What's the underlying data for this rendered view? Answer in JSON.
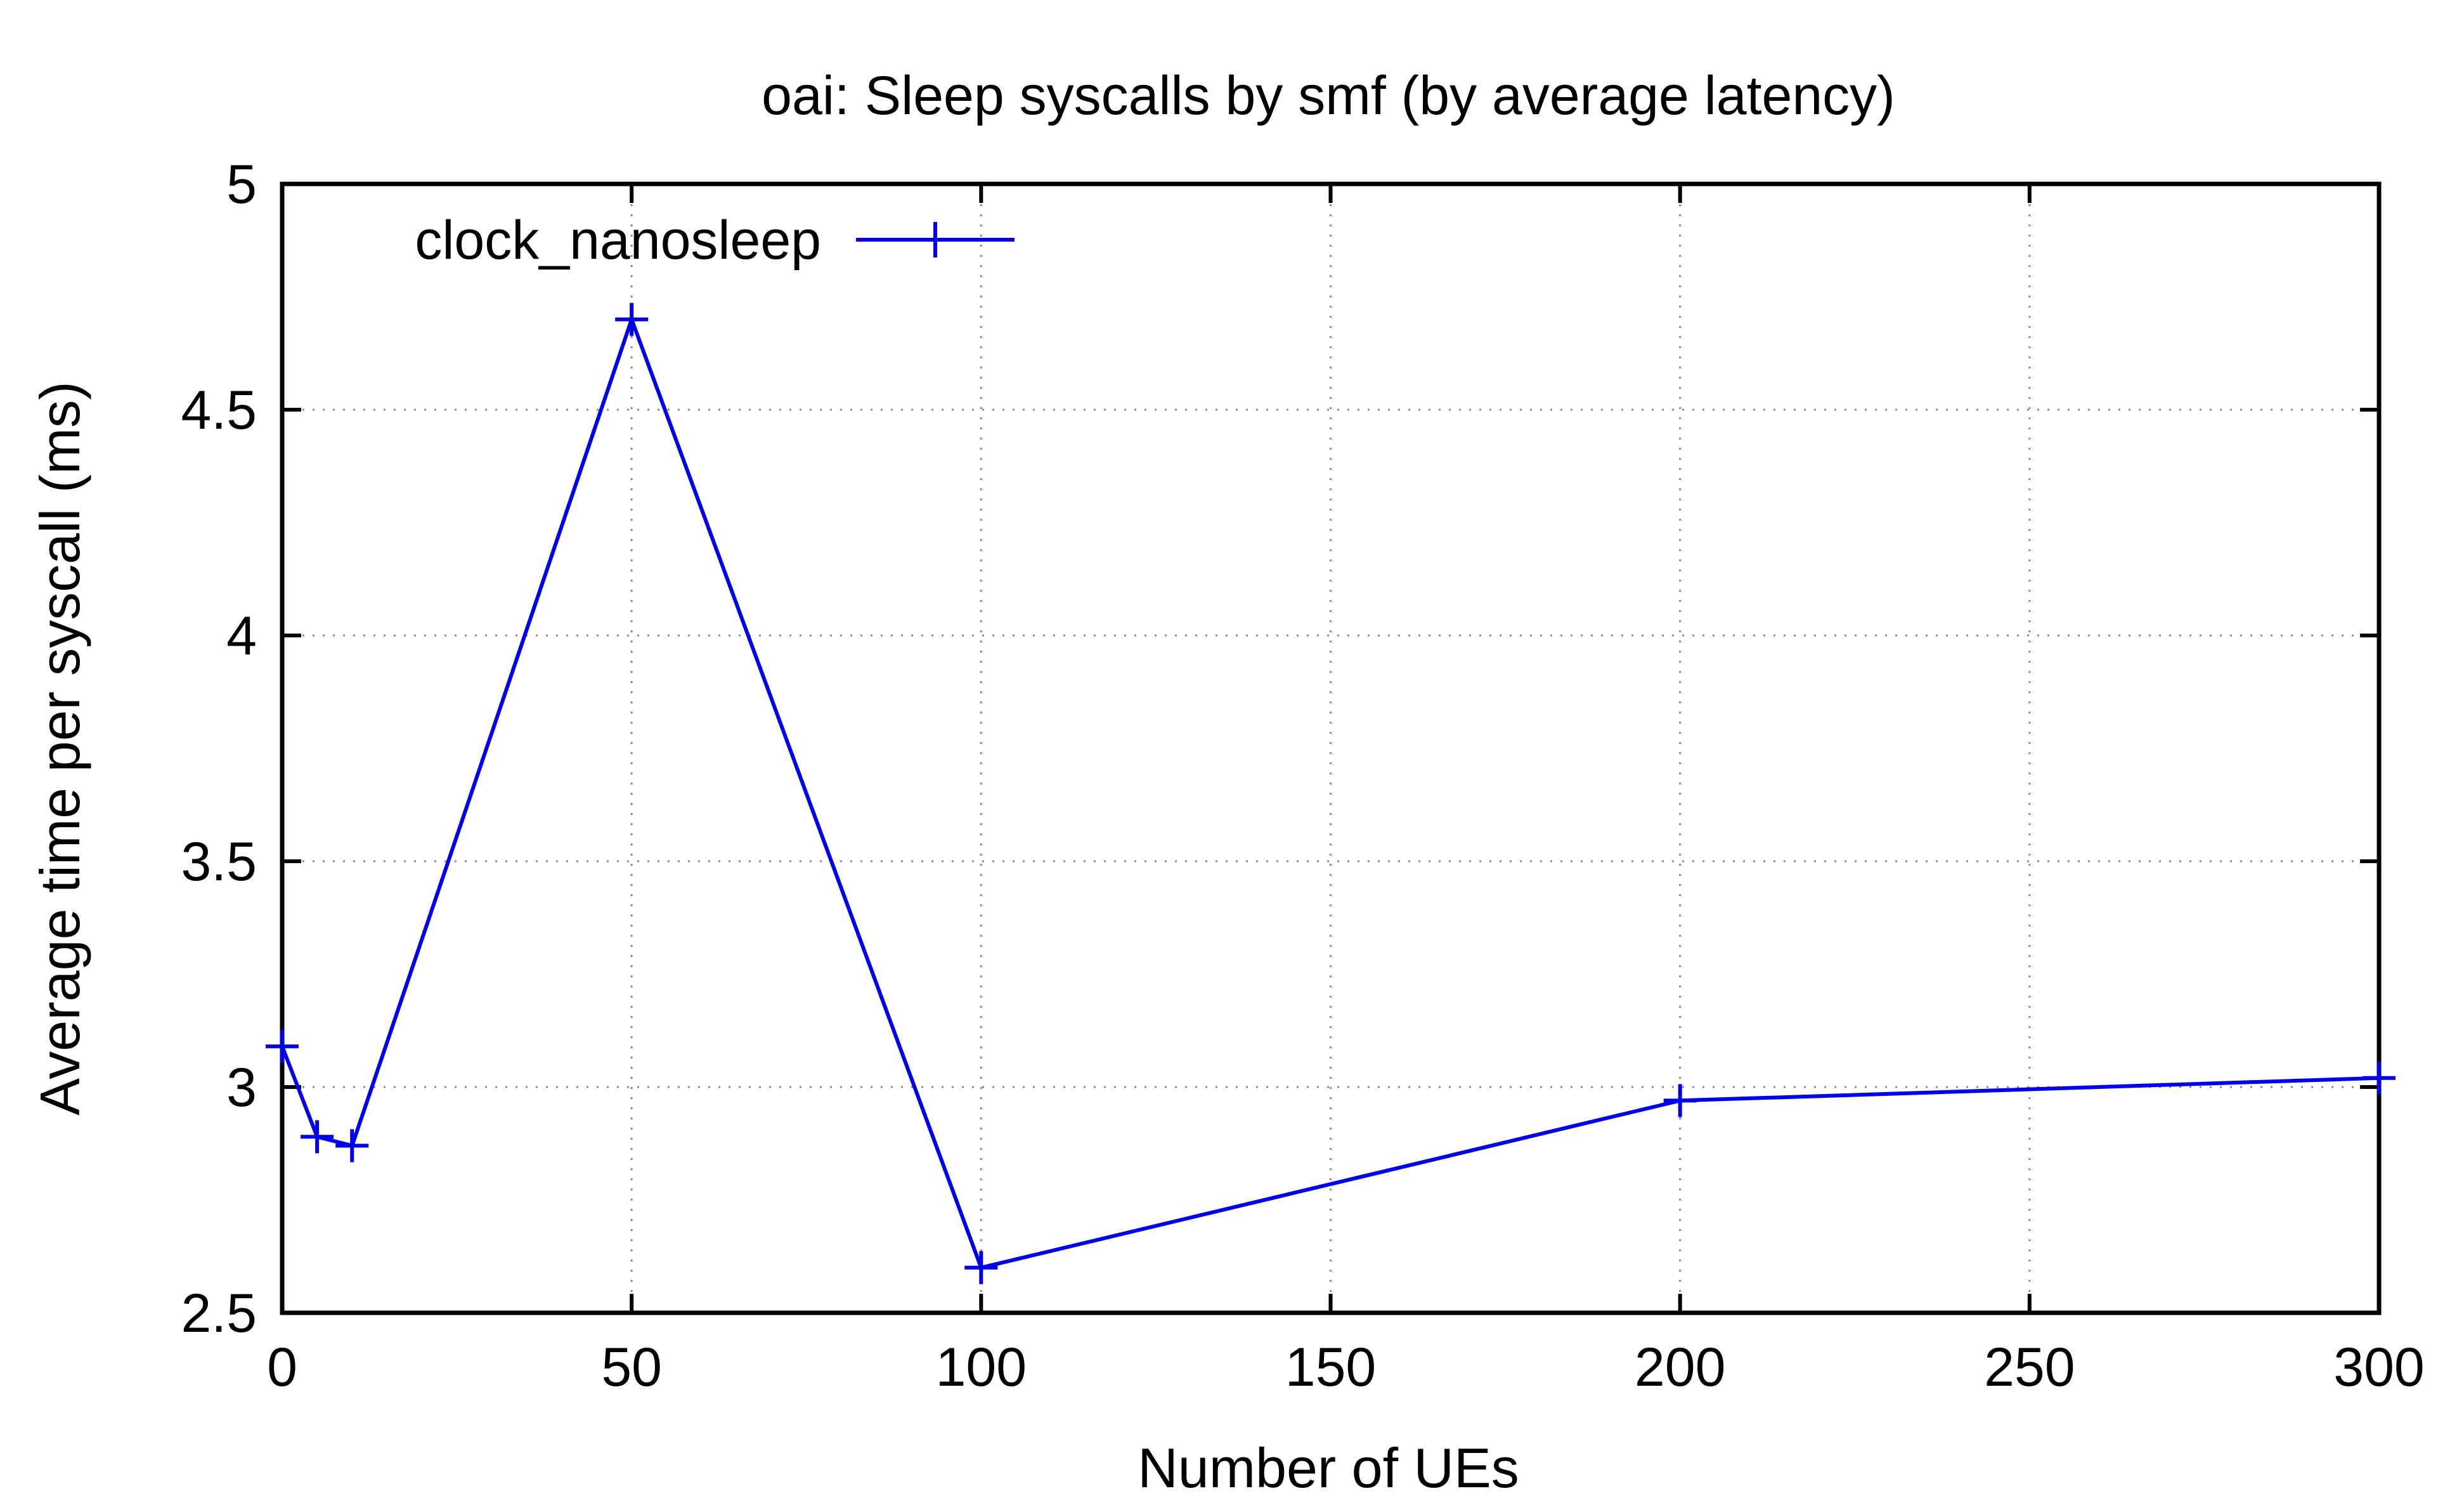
{
  "chart_data": {
    "type": "line",
    "title": "oai: Sleep syscalls by smf (by average latency)",
    "xlabel": "Number of UEs",
    "ylabel": "Average time per syscall (ms)",
    "xlim": [
      0,
      300
    ],
    "ylim": [
      2.5,
      5
    ],
    "x_ticks": [
      0,
      50,
      100,
      150,
      200,
      250,
      300
    ],
    "y_ticks": [
      2.5,
      3,
      3.5,
      4,
      4.5,
      5
    ],
    "x_tick_labels": [
      "0",
      "50",
      "100",
      "150",
      "200",
      "250",
      "300"
    ],
    "y_tick_labels": [
      "2.5",
      "3",
      "3.5",
      "4",
      "4.5",
      "5"
    ],
    "grid": true,
    "legend_position": "top-left",
    "series": [
      {
        "name": "clock_nanosleep",
        "color": "#0000ee",
        "marker": "plus",
        "x": [
          0,
          5,
          10,
          50,
          100,
          200,
          300
        ],
        "y": [
          3.09,
          2.89,
          2.87,
          4.7,
          2.6,
          2.97,
          3.02
        ]
      }
    ]
  }
}
